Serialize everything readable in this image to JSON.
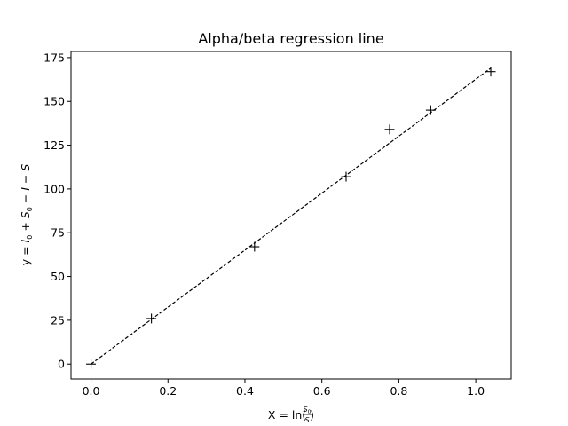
{
  "chart_data": {
    "type": "scatter",
    "title": "Alpha/beta regression line",
    "xlim": [
      -0.052,
      1.092
    ],
    "ylim": [
      -8.5,
      178.5
    ],
    "xticks": [
      0.0,
      0.2,
      0.4,
      0.6,
      0.8,
      1.0
    ],
    "xtick_labels": [
      "0.0",
      "0.2",
      "0.4",
      "0.6",
      "0.8",
      "1.0"
    ],
    "yticks": [
      0,
      25,
      50,
      75,
      100,
      125,
      150,
      175
    ],
    "ytick_labels": [
      "0",
      "25",
      "50",
      "75",
      "100",
      "125",
      "150",
      "175"
    ],
    "grid": false,
    "xlabel": {
      "prefix": "X = ln(",
      "numerator": "S",
      "numerator_sub": "0",
      "denominator": "S",
      "suffix": ")"
    },
    "ylabel": {
      "prefix": "y = ",
      "I": "I",
      "I_sub": "0",
      "plus": " + ",
      "S": "S",
      "S_sub": "0",
      "minus1": " − ",
      "I2": "I",
      "minus2": " − ",
      "S2": "S"
    },
    "series": [
      {
        "marker": "+",
        "color": "#000000",
        "points": [
          {
            "x": 0.0,
            "y": 0
          },
          {
            "x": 0.157,
            "y": 26
          },
          {
            "x": 0.425,
            "y": 67
          },
          {
            "x": 0.663,
            "y": 107
          },
          {
            "x": 0.776,
            "y": 134
          },
          {
            "x": 0.883,
            "y": 145
          },
          {
            "x": 1.039,
            "y": 167
          }
        ]
      },
      {
        "line_style": "dashed",
        "color": "#000000",
        "points": [
          {
            "x": 0.0,
            "y": 0
          },
          {
            "x": 1.039,
            "y": 169
          }
        ]
      }
    ]
  }
}
